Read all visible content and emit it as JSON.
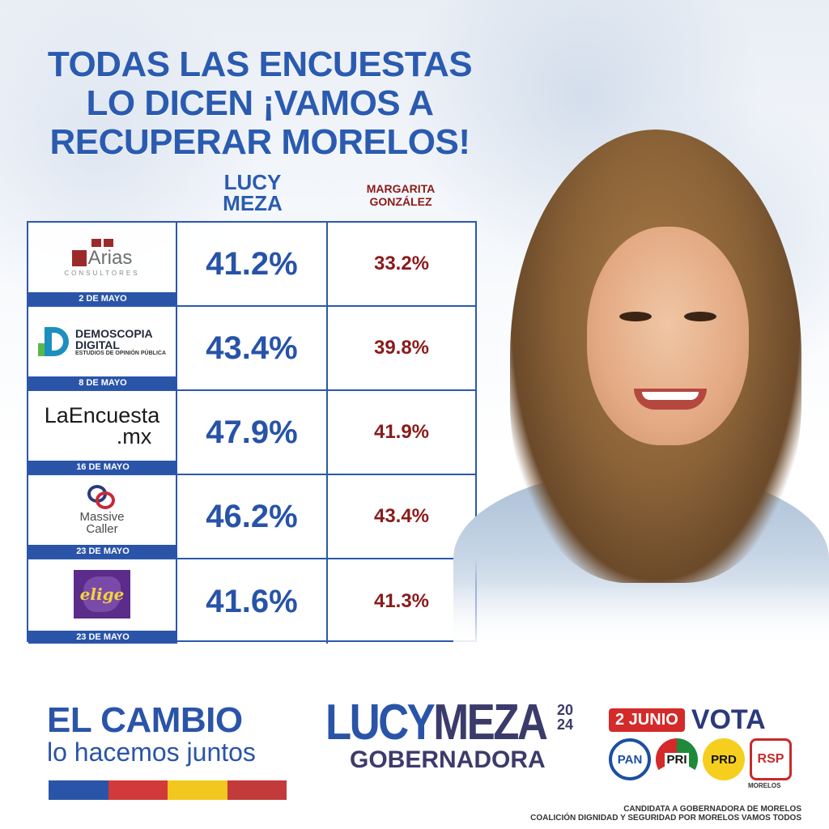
{
  "headline": [
    "TODAS LAS ENCUESTAS",
    "LO DICEN ¡VAMOS A",
    "RECUPERAR MORELOS!"
  ],
  "columns": {
    "lucy": [
      "LUCY",
      "MEZA"
    ],
    "margarita": [
      "MARGARITA",
      "GONZÁLEZ"
    ]
  },
  "polls": [
    {
      "pollster": "Arias",
      "pollster_sub": "CONSULTORES",
      "date": "2 DE MAYO",
      "lucy": "41.2%",
      "margarita": "33.2%"
    },
    {
      "pollster": "DEMOSCOPIA DIGITAL",
      "pollster_line1": "DEMOSCOPIA",
      "pollster_line2": "DIGITAL",
      "pollster_sub": "ESTUDIOS DE OPINIÓN PÚBLICA",
      "date": "8 DE MAYO",
      "lucy": "43.4%",
      "margarita": "39.8%"
    },
    {
      "pollster": "LaEncuesta.mx",
      "pollster_line1": "LaEncuesta",
      "pollster_line2": ".mx",
      "date": "16 DE MAYO",
      "lucy": "47.9%",
      "margarita": "41.9%"
    },
    {
      "pollster": "Massive Caller",
      "pollster_line1": "Massive",
      "pollster_line2": "Caller",
      "date": "23 DE MAYO",
      "lucy": "46.2%",
      "margarita": "43.4%"
    },
    {
      "pollster": "elige",
      "date": "23 DE MAYO",
      "lucy": "41.6%",
      "margarita": "41.3%"
    }
  ],
  "slogan": {
    "line1": "EL CAMBIO",
    "line2": "lo hacemos juntos"
  },
  "stripe_colors": [
    "#2a54a8",
    "#d23a3a",
    "#f2c81e",
    "#c23a3a"
  ],
  "candidate": {
    "first": "LUCY",
    "last": "MEZA",
    "year_top": "20",
    "year_bottom": "24",
    "role": "GOBERNADORA"
  },
  "vote": {
    "date": "2 JUNIO",
    "label": "VOTA"
  },
  "parties": [
    "PAN",
    "PRI",
    "PRD",
    "RSP"
  ],
  "party_sub": "MORELOS",
  "fine_print": [
    "CANDIDATA A GOBERNADORA DE MORELOS",
    "COALICIÓN DIGNIDAD Y SEGURIDAD POR MORELOS VAMOS TODOS"
  ],
  "colors": {
    "blue": "#2a54a8",
    "maroon": "#8b1a1a",
    "red": "#d42a2a"
  }
}
